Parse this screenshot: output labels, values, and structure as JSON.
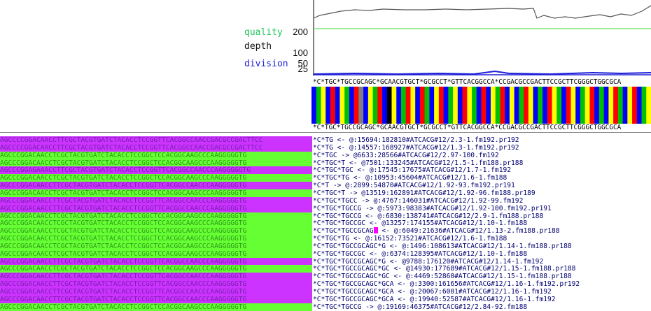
{
  "legend": {
    "quality": {
      "label": "quality",
      "color": "#22c55e"
    },
    "depth": {
      "label": "depth",
      "color": "#111111"
    },
    "division": {
      "label": "division",
      "color": "#1e1ed8"
    }
  },
  "axis_ticks": [
    "200",
    "100",
    "50",
    "25"
  ],
  "consensus": "*C*TGC*TGCCGCAGC*GCAACGTGCT*GCGCCT*GTTCACGGCCA*CCGACGCCGACTTCCGCTTCGGGCTGGCGCA",
  "trace_colors": [
    "#0000ff",
    "#ffff00",
    "#ff0000",
    "#00c000",
    "#7f7f7f",
    "#000000"
  ],
  "trace_pattern": [
    0,
    3,
    1,
    0,
    2,
    0,
    1,
    3,
    0,
    2,
    4,
    0,
    1,
    3,
    2,
    0,
    5,
    1,
    0,
    3,
    2,
    1,
    0,
    2,
    3,
    0,
    1,
    2,
    0,
    3,
    1,
    0,
    2,
    1,
    3,
    0,
    2,
    0,
    1,
    3,
    2,
    0,
    1,
    0,
    3,
    2,
    1,
    0,
    3,
    0,
    2,
    1,
    3,
    0,
    2,
    1,
    0,
    3,
    1,
    2,
    0,
    3,
    0,
    1,
    2,
    3,
    0,
    1,
    2,
    0,
    3,
    1
  ],
  "row_colors": {
    "magenta": "#cc33ff",
    "green": "#66ff33"
  },
  "reads": [
    {
      "fill": "magenta",
      "seq": "AGCCCCGGACAACCTTCGCTACGTGATCTACACCTCCGGTTCACGGCCAACCGACGCCGACTTCC",
      "label": "*C*TG <- @:15694:182810#ATCACG#12/2.3-1.fm192.pr192"
    },
    {
      "fill": "magenta",
      "seq": "AGCCCCGGACAACCTTCGCTACGTGATCTACACCTCCGGTTCACGGCCAACCGACGCCGACTTCC",
      "label": "*C*TG <- @:14557:168927#ATCACG#12/1.3-1.fm192.pr192"
    },
    {
      "fill": "green",
      "seq": "AGCCCGGACAACCTCGCTACGTGATCTACACCTCCGGCTCCACGGCAAGCCCAAGGGGGTG",
      "label": "*C*TGC -> @6633:28566#ATCACG#12/2.97-100.fm192"
    },
    {
      "fill": "green",
      "seq": "AGCCCGGACAACCTCGCTACGTGATCTACACCTCCGGCTCCACGGCAAGCCCAAGGGGGTG",
      "label": "*C*TGC*T <- @7501:133245#ATCACG#12/1.5-1.fm188.pr188"
    },
    {
      "fill": "magenta",
      "seq": "AGCCCGGAGAAACCTTCGCTACGTGATCTACACCTCCGGTTCACGGCCAACCCAAGGGGGTG",
      "label": "*C*TGC*TGC <- @:17545:17675#ATCACG#12/1.7-1.fm192"
    },
    {
      "fill": "green",
      "seq": "AGCCCGGACAACCTCGCTACGTGATCTACACCTCCGGCTCCACGGCAAGCCCAAGGGGGTG",
      "label": "*C*TGC*TG <- @:10953:45604#ATCACG#12/1.6-1.fm188"
    },
    {
      "fill": "magenta",
      "seq": "AGCCCGGACAACCTTCGCTACGTGATCTACACCTCCGGTTCACGGCCAACCCAAGGGGGTG",
      "label": "*C*T -> @:2899:54870#ATCACG#12/1.92-93.fm192.pr191"
    },
    {
      "fill": "green",
      "seq": "AGCCCGGACAACCTCGCTACGTGATCTACACCTCCGGCTCCACGGCAAGCCCAAGGGGGTG",
      "label": "*C*TGC*T -> @13519:162891#ATCACG#12/1.92-96.fm188.pr189"
    },
    {
      "fill": "magenta",
      "seq": "AGCCCGGACAACCTTCGCTACGTGATCTACACCTCCGGTTCACGGCCAACCCAAGGGGGTG",
      "label": "*C*TGC*TGCC -> @:4767:146031#ATCACG#12/1.92-99.fm192"
    },
    {
      "fill": "magenta",
      "seq": "AGCCCGGACAACCTTCGCTACGTGATCTACACCTCCGGTTCACGGCCAACCCAAGGGGGTG",
      "label": "*C*TGC*TGCCG -> @:5973:98383#ATCACG#12/1.92-100.fm192.pr191"
    },
    {
      "fill": "green",
      "seq": "AGCCCGGACAACCTCGCTACGTGATCTACACCTCCGGCTCCACGGCAAGCCCAAGGGGGTG",
      "label": "*C*TGC*TGCCG <- @:6830:138741#ATCACG#12/2.9-1.fm188.pr188"
    },
    {
      "fill": "green",
      "seq": "AGCCCGGACAACCTCGCTACGTGATCTACACCTCCGGCTCCACGGCAAGCCCAAGGGGGTG",
      "label": "*C*TGC*TGCCGC <- @13257:174155#ATCACG#12/1.10-1.fm188"
    },
    {
      "fill": "green",
      "seq": "AGCCCGGACAACCTCGCTACGTGATCTACACCTCCGGCTCCACGGCAAGCCCAAGGGGGTG",
      "label": "*C*TGC*TGCCGCAG",
      "cursor": true,
      "label_tail": " <- @:6049:21636#ATCACG#12/1.13-2.fm188.pr188"
    },
    {
      "fill": "green",
      "seq": "AGCCCGGACAACCTCGCTACGTGATCTACACCTCCGGCTCCACGGCAAGCCCAAGGGGGTG",
      "label": "*C*TGC*TG <- @:16152:73521#ATCACG#12/1.6-1.fm188"
    },
    {
      "fill": "green",
      "seq": "AGCCCGGACAACCTCGCTACGTGATCTACACCTCCGGCTCCACGGCAAGCCCAAGGGGGTG",
      "label": "*C*TGC*TGCCGCAGC*G <- @:1496:108613#ATCACG#12/1.14-1.fm188.pr188"
    },
    {
      "fill": "green",
      "seq": "AGCCCGGACAACCTCGCTACGTGATCTACACCTCCGGCTCCACGGCAAGCCCAAGGGGGTG",
      "label": "*C*TGC*TGCCGC <- @:6374:128395#ATCACG#12/1.10-1.fm188"
    },
    {
      "fill": "magenta",
      "seq": "AGCCCGGACAACCTTCGCTACGTGATCTACACCTCCGGTTCACGGCCAACCCAAGGGGGTG",
      "label": "*C*TGC*TGCCGCAGC*G <- @9788:176120#ATCACG#12/1.14-1.fm192"
    },
    {
      "fill": "green",
      "seq": "AGCCCGGACAACCTCGCTACGTGATCTACACCTCCGGCTCCACGGCAAGCCCAAGGGGGTG",
      "label": "*C*TGC*TGCCGCAGC*GC <- @14930:177689#ATCACG#12/1.15-1.fm188.pr188"
    },
    {
      "fill": "magenta",
      "seq": "AGCCCGGACAACCTTCGCTACGTGATCTACACCTCCGGTTCACGGCCAACCCAAGGGGGTG",
      "label": "*C*TGC*TGCCGCAGC*GC <- @:4469:52860#ATCACG#12/1.15-1.fm188.pr188"
    },
    {
      "fill": "magenta",
      "seq": "AGCCCGGACAACCTTCGCTACGTGATCTACACCTCCGGTTCACGGCCAACCCAAGGGGGTG",
      "label": "*C*TGC*TGCCGCAGC*GCA <- @:3300:161656#ATCACG#12/1.16-1.fm192.pr192"
    },
    {
      "fill": "magenta",
      "seq": "AGCCCGGACAACCTTCGCTACGTGATCTACACCTCCGGTTCACGGCCAACCCAAGGGGGTG",
      "label": "*C*TGC*TGCCGCAGC*GCA <- @:20067:6001#ATCACG#12/1.16-1.fm192"
    },
    {
      "fill": "magenta",
      "seq": "AGCCCGGACAACCTTCGCTACGTGATCTACACCTCCGGTTCACGGCCAACCCAAGGGGGTG",
      "label": "*C*TGC*TGCCGCAGC*GCA <- @:19940:52587#ATCACG#12/1.16-1.fm192"
    },
    {
      "fill": "green",
      "seq": "AGCCCGGACAACCTCGCTACGTGATCTACACCTCCGGCTCCACGGCAAGCCCAAGGGGGTG",
      "label": "*C*TGC*TGCCG -> @:19169:46375#ATCACG#12/2.84-92.fm188"
    }
  ]
}
